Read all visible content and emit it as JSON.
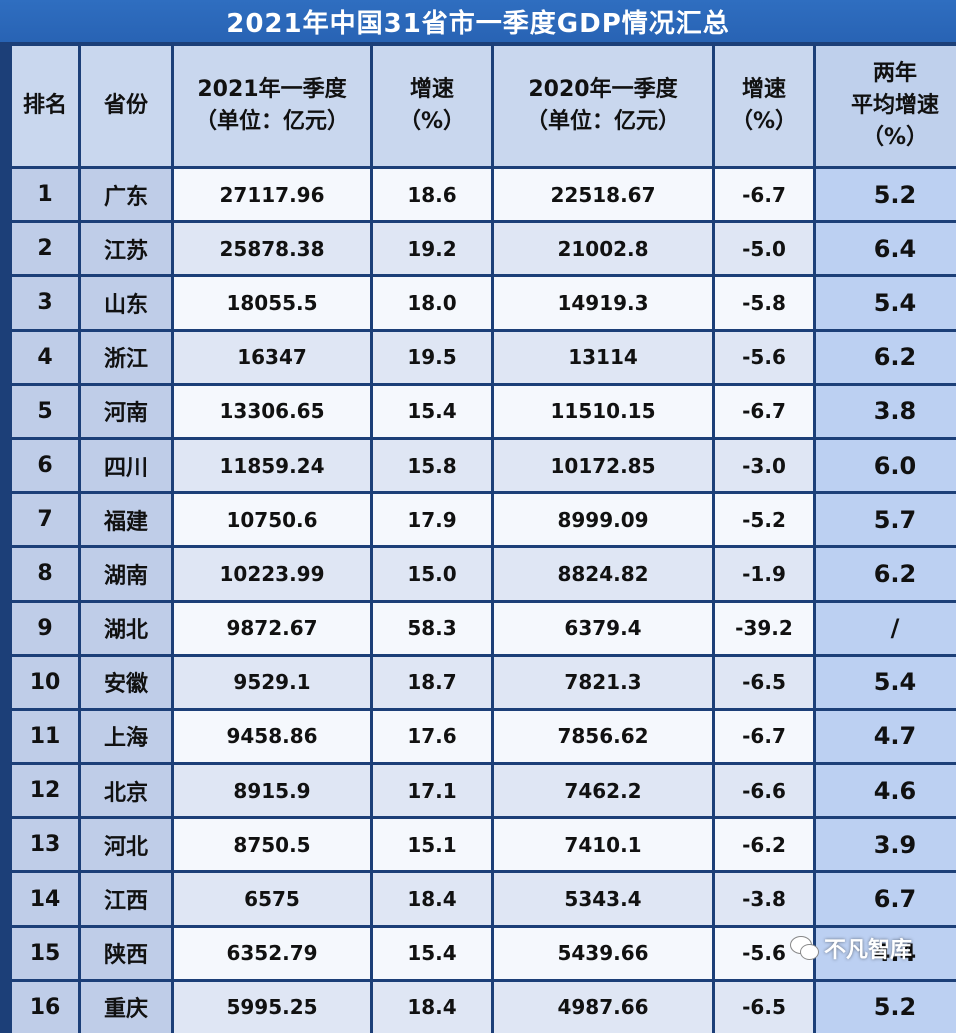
{
  "title": "2021年中国31省市一季度GDP情况汇总",
  "headers": {
    "rank": "排名",
    "province": "省份",
    "gdp2021": [
      "2021年一季度",
      "（单位：亿元）"
    ],
    "growth2021": [
      "增速",
      "（%）"
    ],
    "gdp2020": [
      "2020年一季度",
      "（单位：亿元）"
    ],
    "growth2020": [
      "增速",
      "（%）"
    ],
    "avg_growth": [
      "两年",
      "平均增速",
      "（%）"
    ]
  },
  "rows": [
    {
      "rank": "1",
      "province": "广东",
      "gdp2021": "27117.96",
      "growth2021": "18.6",
      "gdp2020": "22518.67",
      "growth2020": "-6.7",
      "avg": "5.2"
    },
    {
      "rank": "2",
      "province": "江苏",
      "gdp2021": "25878.38",
      "growth2021": "19.2",
      "gdp2020": "21002.8",
      "growth2020": "-5.0",
      "avg": "6.4"
    },
    {
      "rank": "3",
      "province": "山东",
      "gdp2021": "18055.5",
      "growth2021": "18.0",
      "gdp2020": "14919.3",
      "growth2020": "-5.8",
      "avg": "5.4"
    },
    {
      "rank": "4",
      "province": "浙江",
      "gdp2021": "16347",
      "growth2021": "19.5",
      "gdp2020": "13114",
      "growth2020": "-5.6",
      "avg": "6.2"
    },
    {
      "rank": "5",
      "province": "河南",
      "gdp2021": "13306.65",
      "growth2021": "15.4",
      "gdp2020": "11510.15",
      "growth2020": "-6.7",
      "avg": "3.8"
    },
    {
      "rank": "6",
      "province": "四川",
      "gdp2021": "11859.24",
      "growth2021": "15.8",
      "gdp2020": "10172.85",
      "growth2020": "-3.0",
      "avg": "6.0"
    },
    {
      "rank": "7",
      "province": "福建",
      "gdp2021": "10750.6",
      "growth2021": "17.9",
      "gdp2020": "8999.09",
      "growth2020": "-5.2",
      "avg": "5.7"
    },
    {
      "rank": "8",
      "province": "湖南",
      "gdp2021": "10223.99",
      "growth2021": "15.0",
      "gdp2020": "8824.82",
      "growth2020": "-1.9",
      "avg": "6.2"
    },
    {
      "rank": "9",
      "province": "湖北",
      "gdp2021": "9872.67",
      "growth2021": "58.3",
      "gdp2020": "6379.4",
      "growth2020": "-39.2",
      "avg": "/"
    },
    {
      "rank": "10",
      "province": "安徽",
      "gdp2021": "9529.1",
      "growth2021": "18.7",
      "gdp2020": "7821.3",
      "growth2020": "-6.5",
      "avg": "5.4"
    },
    {
      "rank": "11",
      "province": "上海",
      "gdp2021": "9458.86",
      "growth2021": "17.6",
      "gdp2020": "7856.62",
      "growth2020": "-6.7",
      "avg": "4.7"
    },
    {
      "rank": "12",
      "province": "北京",
      "gdp2021": "8915.9",
      "growth2021": "17.1",
      "gdp2020": "7462.2",
      "growth2020": "-6.6",
      "avg": "4.6"
    },
    {
      "rank": "13",
      "province": "河北",
      "gdp2021": "8750.5",
      "growth2021": "15.1",
      "gdp2020": "7410.1",
      "growth2020": "-6.2",
      "avg": "3.9"
    },
    {
      "rank": "14",
      "province": "江西",
      "gdp2021": "6575",
      "growth2021": "18.4",
      "gdp2020": "5343.4",
      "growth2020": "-3.8",
      "avg": "6.7"
    },
    {
      "rank": "15",
      "province": "陕西",
      "gdp2021": "6352.79",
      "growth2021": "15.4",
      "gdp2020": "5439.66",
      "growth2020": "-5.6",
      "avg": "4.4"
    },
    {
      "rank": "16",
      "province": "重庆",
      "gdp2021": "5995.25",
      "growth2021": "18.4",
      "gdp2020": "4987.66",
      "growth2020": "-6.5",
      "avg": "5.2"
    }
  ],
  "watermark": {
    "text": "不凡智库",
    "icon": "wechat-icon"
  }
}
